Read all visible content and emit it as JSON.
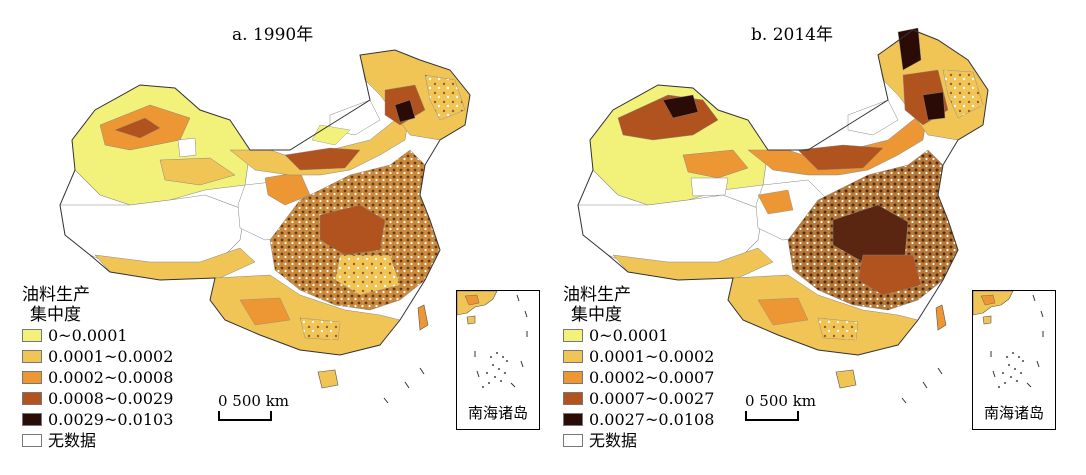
{
  "panels": [
    {
      "title": "a. 1990年",
      "legend": {
        "title_line1": "油料生产",
        "title_line2": "集中度",
        "items": [
          {
            "label": "0~0.0001",
            "color": "#f2f27a"
          },
          {
            "label": "0.0001~0.0002",
            "color": "#f0c455"
          },
          {
            "label": "0.0002~0.0008",
            "color": "#ec9733"
          },
          {
            "label": "0.0008~0.0029",
            "color": "#b1531f"
          },
          {
            "label": "0.0029~0.0103",
            "color": "#2b0b06"
          },
          {
            "label": "无数据",
            "color": "#ffffff"
          }
        ]
      },
      "scale_label": "0  500 km",
      "inset_label": "南海诸岛"
    },
    {
      "title": "b. 2014年",
      "legend": {
        "title_line1": "油料生产",
        "title_line2": "集中度",
        "items": [
          {
            "label": "0~0.0001",
            "color": "#f2f27a"
          },
          {
            "label": "0.0001~0.0002",
            "color": "#f0c455"
          },
          {
            "label": "0.0002~0.0007",
            "color": "#ec9733"
          },
          {
            "label": "0.0007~0.0027",
            "color": "#b1531f"
          },
          {
            "label": "0.0027~0.0108",
            "color": "#2b0b06"
          },
          {
            "label": "无数据",
            "color": "#ffffff"
          }
        ]
      },
      "scale_label": "0  500 km",
      "inset_label": "南海诸岛"
    }
  ]
}
